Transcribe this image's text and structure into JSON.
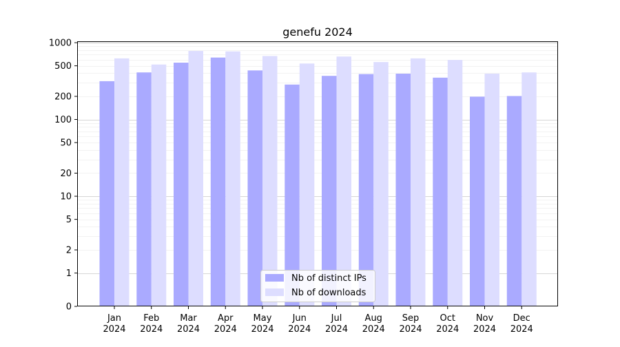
{
  "chart_data": {
    "type": "bar",
    "title": "genefu 2024",
    "xlabel": "",
    "ylabel": "",
    "y_scale": "symlog",
    "ylim": [
      0,
      1000
    ],
    "y_ticks": [
      0,
      1,
      2,
      5,
      10,
      20,
      50,
      100,
      200,
      500,
      1000
    ],
    "y_tick_labels": [
      "0",
      "1",
      "2",
      "5",
      "10",
      "20",
      "50",
      "100",
      "200",
      "500",
      "1000"
    ],
    "categories": [
      "Jan\n2024",
      "Feb\n2024",
      "Mar\n2024",
      "Apr\n2024",
      "May\n2024",
      "Jun\n2024",
      "Jul\n2024",
      "Aug\n2024",
      "Sep\n2024",
      "Oct\n2024",
      "Nov\n2024",
      "Dec\n2024"
    ],
    "series": [
      {
        "name": "Nb of distinct IPs",
        "color": "#aaaaff",
        "values": [
          315,
          410,
          550,
          640,
          435,
          285,
          370,
          390,
          395,
          350,
          198,
          202
        ]
      },
      {
        "name": "Nb of downloads",
        "color": "#ddddff",
        "values": [
          625,
          520,
          780,
          770,
          670,
          535,
          660,
          560,
          625,
          595,
          395,
          410
        ]
      }
    ],
    "grid": true,
    "legend_position": "bottom-center"
  }
}
